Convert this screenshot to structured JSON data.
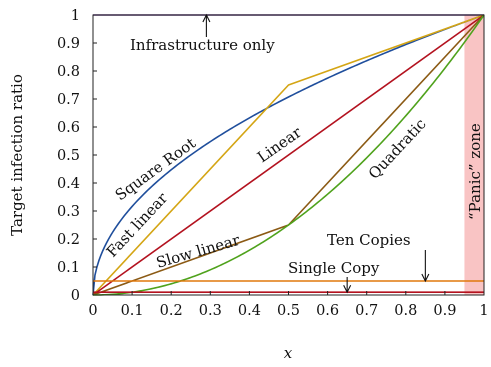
{
  "chart_data": {
    "type": "line",
    "title": "",
    "xlabel": "x",
    "ylabel": "Target infection ratio",
    "xlim": [
      0,
      1
    ],
    "ylim": [
      0,
      1
    ],
    "xticks": [
      "0",
      "0.1",
      "0.2",
      "0.3",
      "0.4",
      "0.5",
      "0.6",
      "0.7",
      "0.8",
      "0.9",
      "1"
    ],
    "yticks": [
      "0",
      "0.1",
      "0.2",
      "0.3",
      "0.4",
      "0.5",
      "0.6",
      "0.7",
      "0.8",
      "0.9",
      "1"
    ],
    "grid": false,
    "legend": "none",
    "series": [
      {
        "key": "infra",
        "name": "Infrastructure only",
        "color": "#5b2a86",
        "function": "constant",
        "y": 1
      },
      {
        "key": "sqrt",
        "name": "Square Root",
        "color": "#1f4e9c",
        "function": "sqrt"
      },
      {
        "key": "fastlinear",
        "name": "Fast linear",
        "color": "#d4a514",
        "function": "piecewise-linear",
        "x": [
          0,
          0.5,
          1
        ],
        "y": [
          0,
          0.75,
          1
        ]
      },
      {
        "key": "linear",
        "name": "Linear",
        "color": "#b3121f",
        "function": "linear",
        "x": [
          0,
          1
        ],
        "y": [
          0,
          1
        ]
      },
      {
        "key": "slowlinear",
        "name": "Slow linear",
        "color": "#8b5a14",
        "function": "piecewise-linear",
        "x": [
          0,
          0.5,
          1
        ],
        "y": [
          0,
          0.25,
          1
        ]
      },
      {
        "key": "quadratic",
        "name": "Quadratic",
        "color": "#4fa21c",
        "function": "quadratic"
      },
      {
        "key": "tencopies",
        "name": "Ten Copies",
        "color": "#e0780c",
        "function": "constant",
        "y": 0.05
      },
      {
        "key": "singlecopy",
        "name": "Single Copy",
        "color": "#b3121f",
        "function": "constant",
        "y": 0.01
      }
    ],
    "panic_zone": {
      "label": "“Panic” zone",
      "x_range": [
        0.95,
        1
      ],
      "color": "#f9c4c4"
    },
    "annotations": [
      {
        "key": "infra",
        "text": "Infrastructure only",
        "arrow_to": [
          0.29,
          1
        ]
      },
      {
        "key": "tencopies",
        "text": "Ten Copies",
        "arrow_to": [
          0.85,
          0.05
        ]
      },
      {
        "key": "singlecopy",
        "text": "Single Copy",
        "arrow_to": [
          0.65,
          0.01
        ]
      }
    ]
  }
}
